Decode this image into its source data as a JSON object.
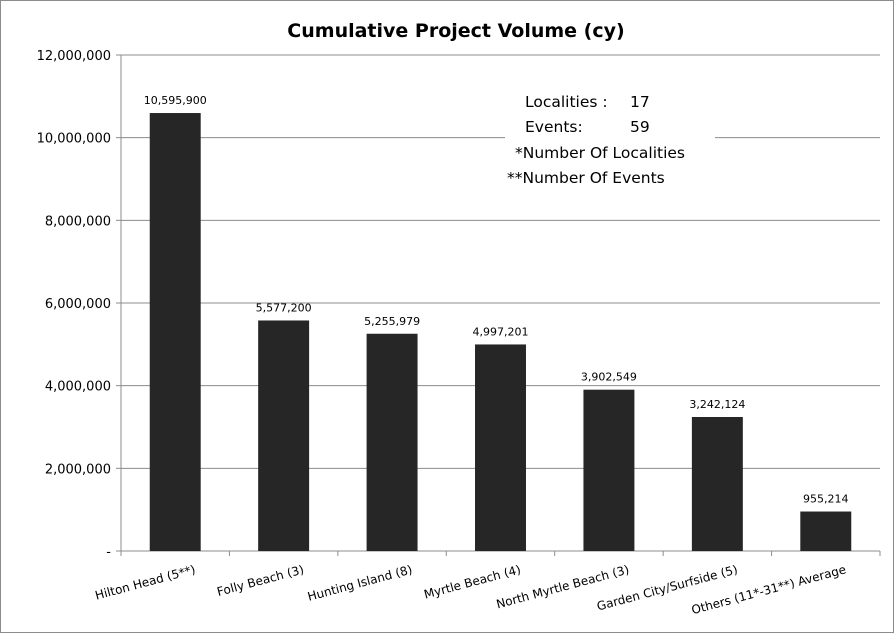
{
  "chart_data": {
    "type": "bar",
    "title": "Cumulative Project Volume (cy)",
    "xlabel": "",
    "ylabel": "",
    "ylim": [
      0,
      12000000
    ],
    "ytick_step": 2000000,
    "ytick_labels": [
      "-",
      "2,000,000",
      "4,000,000",
      "6,000,000",
      "8,000,000",
      "10,000,000",
      "12,000,000"
    ],
    "grid": true,
    "bar_color": "#262626",
    "categories": [
      "Hilton Head (5**)",
      "Folly Beach (3)",
      "Hunting Island (8)",
      "Myrtle Beach (4)",
      "North Myrtle Beach (3)",
      "Garden City/Surfside (5)",
      "Others (11*-31**) Average"
    ],
    "values": [
      10595900,
      5577200,
      5255979,
      4997201,
      3902549,
      3242124,
      955214
    ],
    "data_labels": [
      "10,595,900",
      "5,577,200",
      "5,255,979",
      "4,997,201",
      "3,902,549",
      "3,242,124",
      "955,214"
    ],
    "annotations": {
      "localities_label": "Localities :",
      "localities_value": "17",
      "events_label": "Events:",
      "events_value": "59",
      "footnote_1": "*Number Of Localities",
      "footnote_2": "**Number Of Events",
      "placement": "top-right"
    }
  }
}
